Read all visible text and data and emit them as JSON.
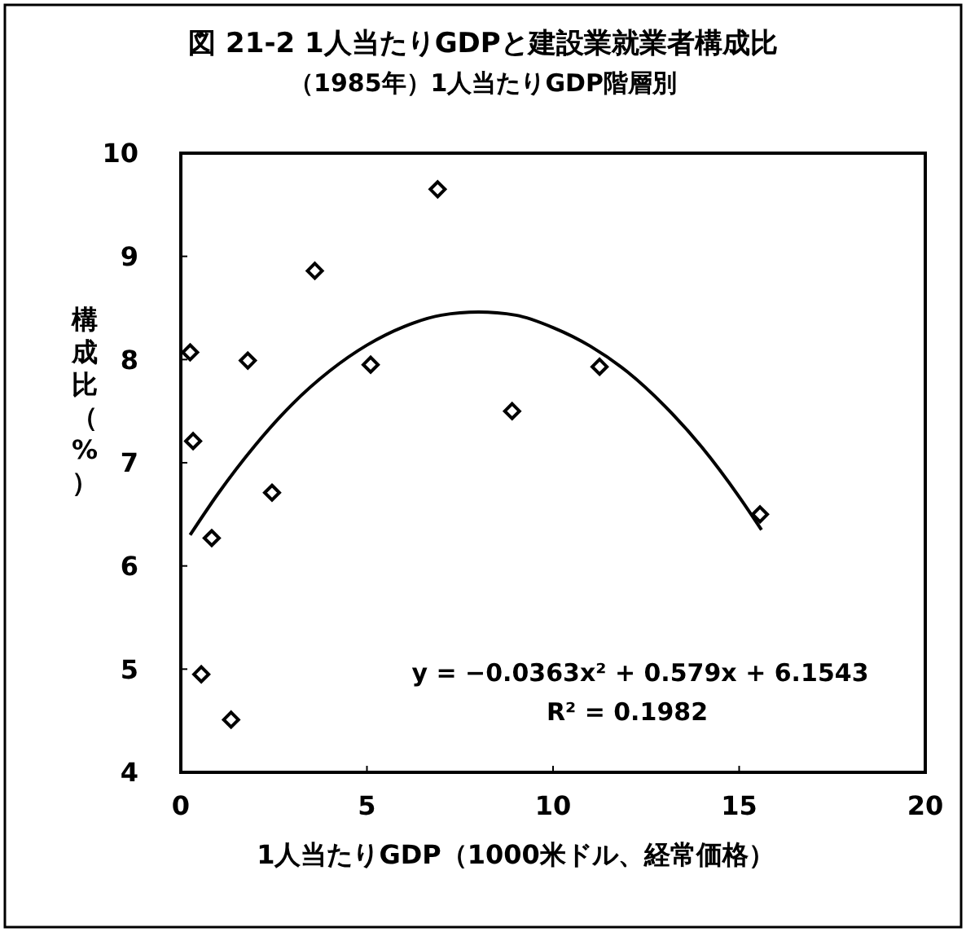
{
  "chart_data": {
    "type": "scatter",
    "title": "図 21-2 1人当たりGDPと建設業就業者構成比",
    "subtitle": "（1985年）1人当たりGDP階層別",
    "xlabel": "1人当たりGDP（1000米ドル、経常価格）",
    "ylabel": "構成比（%）",
    "xlim": [
      0,
      20
    ],
    "xticks": [
      0,
      5,
      10,
      15,
      20
    ],
    "ylim": [
      4,
      10
    ],
    "yticks": [
      4,
      5,
      6,
      7,
      8,
      9,
      10
    ],
    "grid": false,
    "series": [
      {
        "color": "#000000",
        "marker": "diamond",
        "x": [
          0.25,
          0.33,
          0.55,
          0.83,
          1.35,
          1.8,
          2.45,
          3.6,
          5.1,
          6.9,
          8.9,
          11.25,
          15.56
        ],
        "values": [
          8.07,
          7.21,
          4.95,
          6.27,
          4.51,
          7.99,
          6.71,
          8.86,
          7.95,
          9.65,
          7.5,
          7.93,
          6.5
        ]
      },
      {
        "type": "line",
        "color": "#000000",
        "marker": "none",
        "line_style": "solid",
        "x": [
          0.25,
          1,
          2,
          3,
          4,
          5,
          6,
          7,
          8,
          9,
          10,
          11,
          12,
          13,
          14,
          15,
          15.6
        ],
        "values": [
          6.3,
          6.7,
          7.17,
          7.57,
          7.89,
          8.14,
          8.32,
          8.43,
          8.46,
          8.43,
          8.31,
          8.13,
          7.88,
          7.55,
          7.15,
          6.67,
          6.35
        ]
      }
    ],
    "annotations": [
      "y = −0.0363x² + 0.579x + 6.1543",
      "R² = 0.1982"
    ]
  }
}
